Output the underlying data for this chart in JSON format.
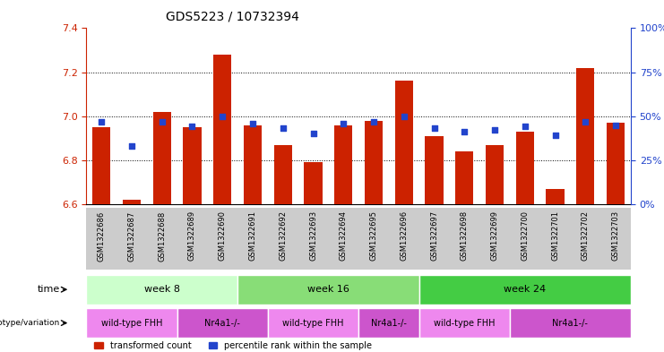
{
  "title": "GDS5223 / 10732394",
  "samples": [
    "GSM1322686",
    "GSM1322687",
    "GSM1322688",
    "GSM1322689",
    "GSM1322690",
    "GSM1322691",
    "GSM1322692",
    "GSM1322693",
    "GSM1322694",
    "GSM1322695",
    "GSM1322696",
    "GSM1322697",
    "GSM1322698",
    "GSM1322699",
    "GSM1322700",
    "GSM1322701",
    "GSM1322702",
    "GSM1322703"
  ],
  "transformed_counts": [
    6.95,
    6.62,
    7.02,
    6.95,
    7.28,
    6.96,
    6.87,
    6.79,
    6.96,
    6.98,
    7.16,
    6.91,
    6.84,
    6.87,
    6.93,
    6.67,
    7.22,
    6.97
  ],
  "percentile_ranks": [
    47,
    33,
    47,
    44,
    50,
    46,
    43,
    40,
    46,
    47,
    50,
    43,
    41,
    42,
    44,
    39,
    47,
    45
  ],
  "ylim_left": [
    6.6,
    7.4
  ],
  "ylim_right": [
    0,
    100
  ],
  "yticks_left": [
    6.6,
    6.8,
    7.0,
    7.2,
    7.4
  ],
  "yticks_right": [
    0,
    25,
    50,
    75,
    100
  ],
  "bar_color": "#cc2200",
  "dot_color": "#2244cc",
  "bar_width": 0.6,
  "time_groups": [
    {
      "label": "week 8",
      "start": 0,
      "end": 5,
      "color": "#ccffcc"
    },
    {
      "label": "week 16",
      "start": 5,
      "end": 11,
      "color": "#88dd77"
    },
    {
      "label": "week 24",
      "start": 11,
      "end": 18,
      "color": "#44cc44"
    }
  ],
  "genotype_groups": [
    {
      "label": "wild-type FHH",
      "start": 0,
      "end": 3,
      "color": "#ee88ee"
    },
    {
      "label": "Nr4a1-/-",
      "start": 3,
      "end": 6,
      "color": "#cc55cc"
    },
    {
      "label": "wild-type FHH",
      "start": 6,
      "end": 9,
      "color": "#ee88ee"
    },
    {
      "label": "Nr4a1-/-",
      "start": 9,
      "end": 11,
      "color": "#cc55cc"
    },
    {
      "label": "wild-type FHH",
      "start": 11,
      "end": 14,
      "color": "#ee88ee"
    },
    {
      "label": "Nr4a1-/-",
      "start": 14,
      "end": 18,
      "color": "#cc55cc"
    }
  ],
  "bg_color": "#ffffff",
  "tick_color_left": "#cc2200",
  "tick_color_right": "#2244cc",
  "sample_bg_color": "#cccccc"
}
